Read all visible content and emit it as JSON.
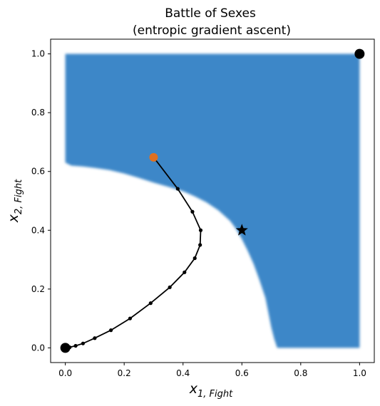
{
  "chart_data": {
    "type": "scatter",
    "title": "Battle of Sexes",
    "subtitle": "(entropic gradient ascent)",
    "xlabel_main": "x",
    "xlabel_sub": "1, Fight",
    "ylabel_main": "x",
    "ylabel_sub": "2, Fight",
    "xlim": [
      -0.05,
      1.05
    ],
    "ylim": [
      -0.05,
      1.05
    ],
    "xticks": [
      "0.0",
      "0.2",
      "0.4",
      "0.6",
      "0.8",
      "1.0"
    ],
    "yticks": [
      "0.0",
      "0.2",
      "0.4",
      "0.6",
      "0.8",
      "1.0"
    ],
    "grid": false,
    "region": {
      "description_color": "#3c87c8",
      "boundary": [
        [
          0.0,
          1.0
        ],
        [
          0.0,
          0.63
        ],
        [
          0.02,
          0.62
        ],
        [
          0.06,
          0.617
        ],
        [
          0.1,
          0.612
        ],
        [
          0.15,
          0.605
        ],
        [
          0.2,
          0.593
        ],
        [
          0.25,
          0.578
        ],
        [
          0.3,
          0.562
        ],
        [
          0.35,
          0.548
        ],
        [
          0.4,
          0.533
        ],
        [
          0.44,
          0.515
        ],
        [
          0.48,
          0.495
        ],
        [
          0.52,
          0.468
        ],
        [
          0.56,
          0.432
        ],
        [
          0.58,
          0.405
        ],
        [
          0.6,
          0.37
        ],
        [
          0.62,
          0.33
        ],
        [
          0.64,
          0.285
        ],
        [
          0.66,
          0.23
        ],
        [
          0.68,
          0.17
        ],
        [
          0.69,
          0.12
        ],
        [
          0.7,
          0.07
        ],
        [
          0.71,
          0.03
        ],
        [
          0.72,
          0.0
        ],
        [
          1.0,
          0.0
        ],
        [
          1.0,
          1.0
        ]
      ]
    },
    "trajectory": {
      "color": "#000000",
      "points": [
        [
          0.0,
          0.0
        ],
        [
          0.015,
          0.002
        ],
        [
          0.035,
          0.007
        ],
        [
          0.06,
          0.015
        ],
        [
          0.1,
          0.033
        ],
        [
          0.155,
          0.06
        ],
        [
          0.22,
          0.1
        ],
        [
          0.29,
          0.152
        ],
        [
          0.355,
          0.206
        ],
        [
          0.405,
          0.257
        ],
        [
          0.44,
          0.305
        ],
        [
          0.458,
          0.35
        ],
        [
          0.46,
          0.4
        ],
        [
          0.432,
          0.463
        ],
        [
          0.382,
          0.541
        ],
        [
          0.3,
          0.648
        ]
      ]
    },
    "markers": [
      {
        "name": "start",
        "x": 0.0,
        "y": 0.0,
        "shape": "circle",
        "color": "#000000"
      },
      {
        "name": "end",
        "x": 0.3,
        "y": 0.648,
        "shape": "circle",
        "color": "#e07020"
      },
      {
        "name": "corner",
        "x": 1.0,
        "y": 1.0,
        "shape": "circle",
        "color": "#000000"
      },
      {
        "name": "star",
        "x": 0.6,
        "y": 0.4,
        "shape": "star",
        "color": "#000000"
      }
    ]
  }
}
